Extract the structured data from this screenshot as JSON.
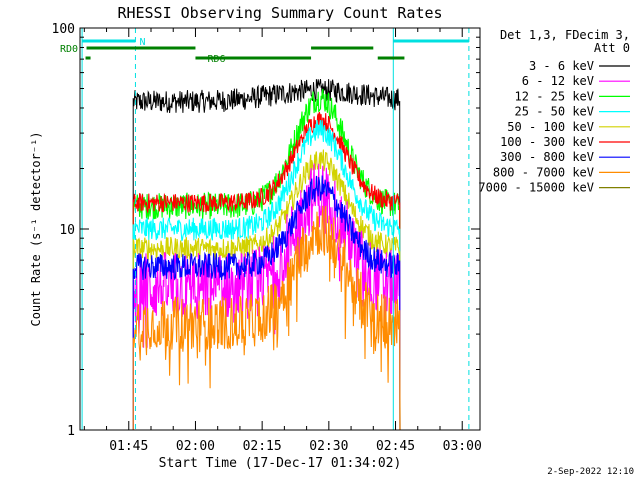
{
  "chart_data": {
    "type": "line",
    "title": "RHESSI Observing Summary Count Rates",
    "xlabel": "Start Time (17-Dec-17 01:34:02)",
    "ylabel": "Count Rate (s⁻¹ detector⁻¹)",
    "y_scale": "log",
    "xlim_minutes": [
      94.03,
      184.0
    ],
    "ylim": [
      1,
      100
    ],
    "x_ticks": [
      {
        "label": "01:45",
        "minute": 105
      },
      {
        "label": "02:00",
        "minute": 120
      },
      {
        "label": "02:15",
        "minute": 135
      },
      {
        "label": "02:30",
        "minute": 150
      },
      {
        "label": "02:45",
        "minute": 165
      },
      {
        "label": "03:00",
        "minute": 180
      }
    ],
    "y_ticks": [
      {
        "label": "1",
        "value": 1
      },
      {
        "label": "10",
        "value": 10
      },
      {
        "label": "100",
        "value": 100
      }
    ],
    "legend_title": "Det 1,3, FDecim 3, Att 0",
    "legend_title_lines": [
      "Det 1,3, FDecim 3,",
      "Att 0"
    ],
    "legend_position": "right",
    "series": [
      {
        "name": "3 - 6 keV",
        "color": "#000000",
        "start": 106,
        "end": 166,
        "base": 43,
        "peak": 49,
        "noise": 0.06
      },
      {
        "name": "6 - 12 keV",
        "color": "#ff00ff",
        "start": 106,
        "end": 166,
        "base": 5.2,
        "peak": 15,
        "noise": 0.18
      },
      {
        "name": "12 - 25 keV",
        "color": "#00ff00",
        "start": 106,
        "end": 166,
        "base": 13,
        "peak": 45,
        "noise": 0.07
      },
      {
        "name": "25 - 50 keV",
        "color": "#00ffff",
        "start": 106,
        "end": 166,
        "base": 10,
        "peak": 31,
        "noise": 0.06
      },
      {
        "name": "50 - 100 keV",
        "color": "#d2d200",
        "start": 106,
        "end": 166,
        "base": 8,
        "peak": 22,
        "noise": 0.06
      },
      {
        "name": "100 - 300 keV",
        "color": "#ff0000",
        "start": 106,
        "end": 166,
        "base": 13.5,
        "peak": 35,
        "noise": 0.05
      },
      {
        "name": "300 - 800 keV",
        "color": "#0000ff",
        "start": 106,
        "end": 166,
        "base": 6.5,
        "peak": 16,
        "noise": 0.07
      },
      {
        "name": "800 - 7000 keV",
        "color": "#ff8c00",
        "start": 106,
        "end": 166,
        "base": 3.4,
        "peak": 10,
        "noise": 0.14
      },
      {
        "name": "7000 - 15000 keV",
        "color": "#808000",
        "start": 106,
        "end": 166,
        "base": 1,
        "peak": 1,
        "noise": 0
      }
    ],
    "flag_bars": [
      {
        "label": "N",
        "color": "#00e0e0",
        "row": "top",
        "segments": [
          [
            94.5,
            106.5
          ],
          [
            164.5,
            181.5
          ]
        ]
      },
      {
        "label": "RD0",
        "color": "#008000",
        "row": "mid",
        "segments": [
          [
            95.5,
            120.0
          ],
          [
            146.0,
            160.0
          ]
        ]
      },
      {
        "label": "RD6",
        "color": "#008000",
        "row": "low",
        "segments": [
          [
            120.0,
            146.0
          ],
          [
            161.0,
            167.0
          ]
        ]
      }
    ],
    "vertical_lines": [
      {
        "minute": 94.5,
        "color": "#00e0e0",
        "style": "solid"
      },
      {
        "minute": 106.5,
        "color": "#00e0e0",
        "style": "dashed"
      },
      {
        "minute": 164.5,
        "color": "#00e0e0",
        "style": "solid"
      },
      {
        "minute": 181.5,
        "color": "#00e0e0",
        "style": "dashed"
      }
    ]
  },
  "footer": {
    "timestamp": "2-Sep-2022 12:10"
  }
}
